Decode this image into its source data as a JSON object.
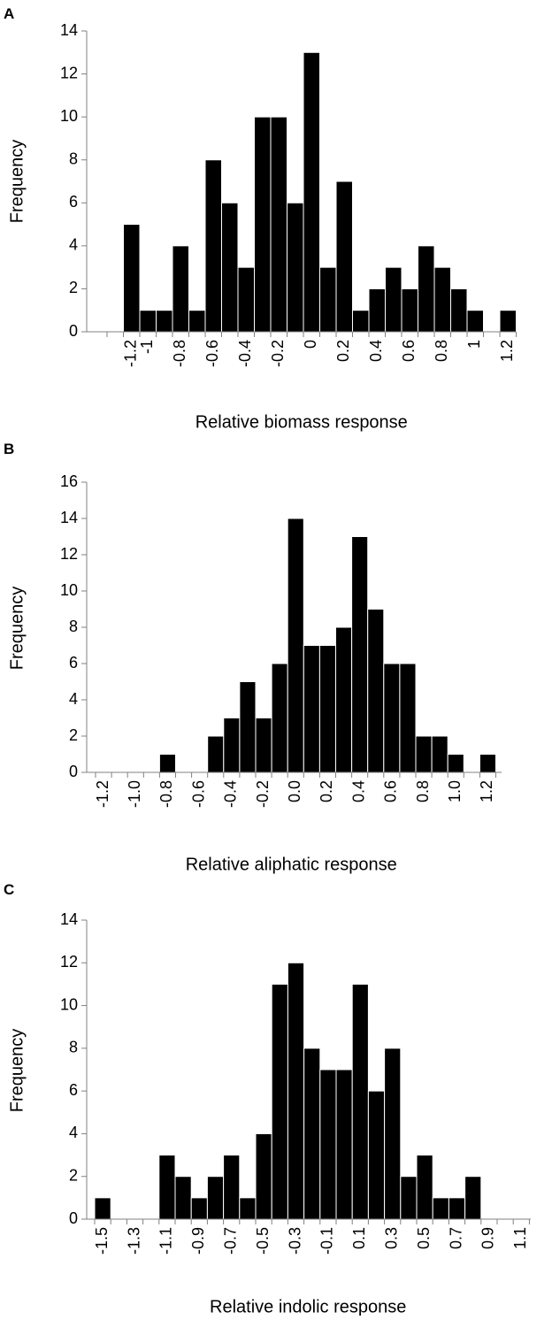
{
  "chart_data": [
    {
      "type": "bar",
      "panel_label": "A",
      "x_label": "Relative biomass response",
      "y_label": "Frequency",
      "color": "#000000",
      "categories": [
        null,
        "-1.2",
        "-1",
        null,
        "-0.8",
        null,
        "-0.6",
        null,
        "-0.4",
        null,
        "-0.2",
        null,
        "0",
        null,
        "0.2",
        null,
        "0.4",
        null,
        "0.6",
        null,
        "0.8",
        null,
        "1",
        null,
        "1.2"
      ],
      "values": [
        0,
        5,
        1,
        1,
        4,
        1,
        8,
        6,
        3,
        10,
        10,
        6,
        13,
        3,
        7,
        1,
        2,
        3,
        2,
        4,
        3,
        2,
        1,
        0,
        1
      ],
      "ylim": [
        0,
        14
      ],
      "yticks": [
        0,
        2,
        4,
        6,
        8,
        10,
        12,
        14
      ]
    },
    {
      "type": "bar",
      "panel_label": "B",
      "x_label": "Relative aliphatic response",
      "y_label": "Frequency",
      "color": "#000000",
      "categories": [
        "-1.2",
        null,
        "-1.0",
        null,
        "-0.8",
        null,
        "-0.6",
        null,
        "-0.4",
        null,
        "-0.2",
        null,
        "0.0",
        null,
        "0.2",
        null,
        "0.4",
        null,
        "0.6",
        null,
        "0.8",
        null,
        "1.0",
        null,
        "1.2"
      ],
      "values": [
        0,
        0,
        0,
        0,
        1,
        0,
        0,
        2,
        3,
        5,
        3,
        6,
        14,
        7,
        7,
        8,
        13,
        9,
        6,
        6,
        2,
        2,
        1,
        0,
        1
      ],
      "ylim": [
        0,
        16
      ],
      "yticks": [
        0,
        2,
        4,
        6,
        8,
        10,
        12,
        14,
        16
      ]
    },
    {
      "type": "bar",
      "panel_label": "C",
      "x_label": "Relative indolic response",
      "y_label": "Frequency",
      "color": "#000000",
      "categories": [
        "-1.5",
        null,
        "-1.3",
        null,
        "-1.1",
        null,
        "-0.9",
        null,
        "-0.7",
        null,
        "-0.5",
        null,
        "-0.3",
        null,
        "-0.1",
        null,
        "0.1",
        null,
        "0.3",
        null,
        "0.5",
        null,
        "0.7",
        null,
        "0.9",
        null,
        "1.1"
      ],
      "values": [
        1,
        0,
        0,
        0,
        3,
        2,
        1,
        2,
        3,
        1,
        4,
        11,
        12,
        8,
        7,
        7,
        11,
        6,
        8,
        2,
        3,
        1,
        1,
        2,
        0,
        0,
        0
      ],
      "ylim": [
        0,
        14
      ],
      "yticks": [
        0,
        2,
        4,
        6,
        8,
        10,
        12,
        14
      ]
    }
  ]
}
